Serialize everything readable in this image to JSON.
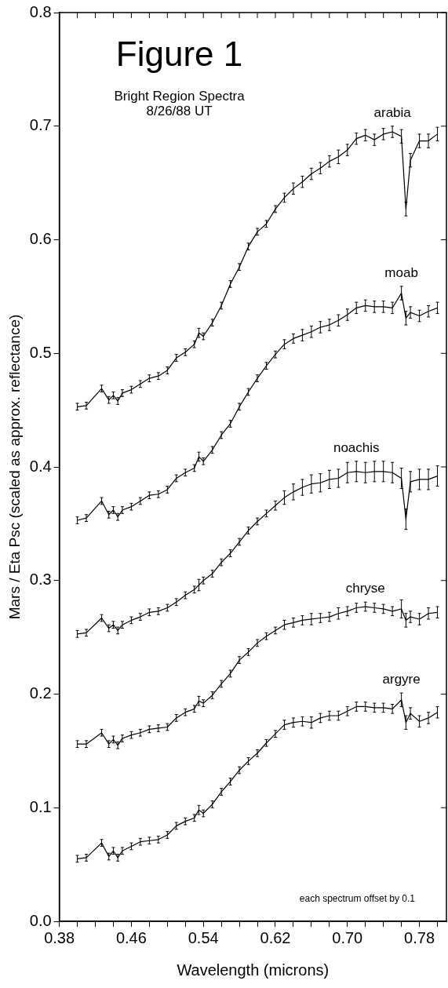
{
  "chart_data": {
    "type": "line",
    "title": "Figure 1",
    "subtitle": "Bright Region Spectra",
    "xlabel": "Wavelength (microns)",
    "ylabel": "Mars / Eta Psc (scaled as approx. reflectance)",
    "annotations": [
      "8/26/88 UT",
      "each spectrum offset by 0.1"
    ],
    "x": [
      0.4,
      0.41,
      0.427,
      0.435,
      0.44,
      0.445,
      0.45,
      0.46,
      0.47,
      0.48,
      0.49,
      0.5,
      0.51,
      0.52,
      0.53,
      0.535,
      0.54,
      0.55,
      0.56,
      0.57,
      0.58,
      0.59,
      0.6,
      0.61,
      0.62,
      0.63,
      0.64,
      0.65,
      0.66,
      0.67,
      0.68,
      0.69,
      0.7,
      0.71,
      0.72,
      0.73,
      0.74,
      0.75,
      0.76,
      0.765,
      0.77,
      0.78,
      0.79,
      0.8
    ],
    "series": [
      {
        "name": "arabia",
        "color": "#000000",
        "values": [
          0.453,
          0.454,
          0.469,
          0.459,
          0.463,
          0.458,
          0.465,
          0.468,
          0.473,
          0.478,
          0.48,
          0.485,
          0.496,
          0.501,
          0.508,
          0.518,
          0.515,
          0.527,
          0.542,
          0.561,
          0.576,
          0.594,
          0.607,
          0.614,
          0.627,
          0.637,
          0.645,
          0.651,
          0.658,
          0.663,
          0.669,
          0.673,
          0.679,
          0.689,
          0.692,
          0.688,
          0.693,
          0.695,
          0.691,
          0.627,
          0.67,
          0.687,
          0.687,
          0.693
        ],
        "errors": [
          0.003,
          0.003,
          0.003,
          0.003,
          0.003,
          0.003,
          0.003,
          0.003,
          0.003,
          0.003,
          0.003,
          0.003,
          0.003,
          0.003,
          0.003,
          0.004,
          0.003,
          0.003,
          0.003,
          0.003,
          0.003,
          0.003,
          0.003,
          0.003,
          0.003,
          0.004,
          0.005,
          0.005,
          0.005,
          0.005,
          0.005,
          0.006,
          0.005,
          0.005,
          0.005,
          0.005,
          0.005,
          0.005,
          0.006,
          0.006,
          0.006,
          0.006,
          0.006,
          0.006
        ]
      },
      {
        "name": "moab",
        "color": "#000000",
        "values": [
          0.353,
          0.355,
          0.37,
          0.358,
          0.362,
          0.356,
          0.362,
          0.365,
          0.37,
          0.375,
          0.376,
          0.38,
          0.39,
          0.395,
          0.399,
          0.409,
          0.405,
          0.415,
          0.428,
          0.438,
          0.453,
          0.466,
          0.478,
          0.489,
          0.499,
          0.508,
          0.513,
          0.516,
          0.519,
          0.523,
          0.525,
          0.529,
          0.534,
          0.54,
          0.542,
          0.541,
          0.541,
          0.54,
          0.553,
          0.531,
          0.536,
          0.533,
          0.537,
          0.54
        ],
        "errors": [
          0.003,
          0.003,
          0.003,
          0.003,
          0.003,
          0.003,
          0.003,
          0.003,
          0.003,
          0.003,
          0.003,
          0.003,
          0.003,
          0.003,
          0.003,
          0.004,
          0.003,
          0.003,
          0.003,
          0.003,
          0.003,
          0.003,
          0.003,
          0.003,
          0.003,
          0.004,
          0.004,
          0.005,
          0.005,
          0.005,
          0.005,
          0.005,
          0.005,
          0.005,
          0.005,
          0.005,
          0.005,
          0.005,
          0.006,
          0.006,
          0.005,
          0.005,
          0.005,
          0.005
        ]
      },
      {
        "name": "noachis",
        "color": "#000000",
        "values": [
          0.253,
          0.254,
          0.267,
          0.258,
          0.261,
          0.256,
          0.261,
          0.265,
          0.268,
          0.272,
          0.273,
          0.276,
          0.281,
          0.287,
          0.292,
          0.296,
          0.3,
          0.306,
          0.316,
          0.324,
          0.334,
          0.344,
          0.352,
          0.359,
          0.366,
          0.373,
          0.378,
          0.382,
          0.385,
          0.386,
          0.389,
          0.39,
          0.395,
          0.396,
          0.395,
          0.396,
          0.396,
          0.395,
          0.39,
          0.354,
          0.387,
          0.389,
          0.389,
          0.392
        ],
        "errors": [
          0.003,
          0.003,
          0.003,
          0.003,
          0.003,
          0.003,
          0.003,
          0.003,
          0.003,
          0.003,
          0.003,
          0.003,
          0.003,
          0.003,
          0.003,
          0.005,
          0.003,
          0.003,
          0.003,
          0.003,
          0.003,
          0.003,
          0.003,
          0.003,
          0.004,
          0.006,
          0.007,
          0.007,
          0.008,
          0.008,
          0.008,
          0.008,
          0.009,
          0.009,
          0.009,
          0.009,
          0.009,
          0.009,
          0.009,
          0.009,
          0.009,
          0.009,
          0.009,
          0.009
        ]
      },
      {
        "name": "chryse",
        "color": "#000000",
        "values": [
          0.156,
          0.156,
          0.166,
          0.156,
          0.16,
          0.155,
          0.161,
          0.164,
          0.166,
          0.169,
          0.17,
          0.171,
          0.179,
          0.184,
          0.187,
          0.194,
          0.192,
          0.199,
          0.209,
          0.218,
          0.23,
          0.237,
          0.245,
          0.251,
          0.256,
          0.261,
          0.263,
          0.265,
          0.266,
          0.267,
          0.268,
          0.271,
          0.273,
          0.276,
          0.277,
          0.276,
          0.275,
          0.273,
          0.275,
          0.265,
          0.268,
          0.266,
          0.271,
          0.272
        ],
        "errors": [
          0.003,
          0.003,
          0.003,
          0.003,
          0.003,
          0.003,
          0.003,
          0.003,
          0.003,
          0.003,
          0.003,
          0.003,
          0.003,
          0.003,
          0.003,
          0.004,
          0.003,
          0.003,
          0.003,
          0.003,
          0.003,
          0.003,
          0.003,
          0.003,
          0.003,
          0.004,
          0.004,
          0.004,
          0.005,
          0.004,
          0.004,
          0.005,
          0.004,
          0.004,
          0.004,
          0.004,
          0.004,
          0.004,
          0.008,
          0.006,
          0.005,
          0.005,
          0.005,
          0.005
        ]
      },
      {
        "name": "argyre",
        "color": "#000000",
        "values": [
          0.055,
          0.056,
          0.069,
          0.057,
          0.062,
          0.056,
          0.062,
          0.066,
          0.07,
          0.071,
          0.072,
          0.076,
          0.084,
          0.088,
          0.091,
          0.098,
          0.095,
          0.103,
          0.114,
          0.123,
          0.133,
          0.141,
          0.148,
          0.157,
          0.165,
          0.173,
          0.175,
          0.176,
          0.175,
          0.179,
          0.181,
          0.181,
          0.185,
          0.189,
          0.189,
          0.188,
          0.188,
          0.187,
          0.195,
          0.175,
          0.183,
          0.176,
          0.179,
          0.184
        ],
        "errors": [
          0.003,
          0.003,
          0.003,
          0.003,
          0.003,
          0.003,
          0.003,
          0.003,
          0.003,
          0.003,
          0.003,
          0.003,
          0.003,
          0.003,
          0.003,
          0.004,
          0.003,
          0.003,
          0.003,
          0.003,
          0.003,
          0.003,
          0.003,
          0.003,
          0.003,
          0.004,
          0.004,
          0.004,
          0.005,
          0.004,
          0.004,
          0.004,
          0.004,
          0.004,
          0.004,
          0.004,
          0.004,
          0.004,
          0.006,
          0.006,
          0.005,
          0.005,
          0.005,
          0.005
        ]
      }
    ],
    "xlim": [
      0.38,
      0.81
    ],
    "ylim": [
      0,
      0.8
    ],
    "xticks": [
      0.38,
      {
        "value": 0.4,
        "label": null
      },
      {
        "value": 0.42,
        "label": null
      },
      {
        "value": 0.44,
        "label": null
      },
      0.46,
      {
        "value": 0.48,
        "label": null
      },
      {
        "value": 0.5,
        "label": null
      },
      {
        "value": 0.52,
        "label": null
      },
      0.54,
      {
        "value": 0.56,
        "label": null
      },
      {
        "value": 0.58,
        "label": null
      },
      {
        "value": 0.6,
        "label": null
      },
      0.62,
      {
        "value": 0.64,
        "label": null
      },
      {
        "value": 0.66,
        "label": null
      },
      {
        "value": 0.68,
        "label": null
      },
      {
        "value": 0.7,
        "label": "0.70"
      },
      {
        "value": 0.72,
        "label": null
      },
      {
        "value": 0.74,
        "label": null
      },
      {
        "value": 0.76,
        "label": null
      },
      0.78,
      {
        "value": 0.8,
        "label": null
      }
    ],
    "yticks": [
      {
        "value": 0,
        "label": "0.0"
      },
      0.1,
      0.2,
      0.3,
      0.4,
      0.5,
      0.6,
      0.7,
      0.8
    ],
    "grid": false,
    "legend": false,
    "marker": "none",
    "line_style": "solid"
  }
}
